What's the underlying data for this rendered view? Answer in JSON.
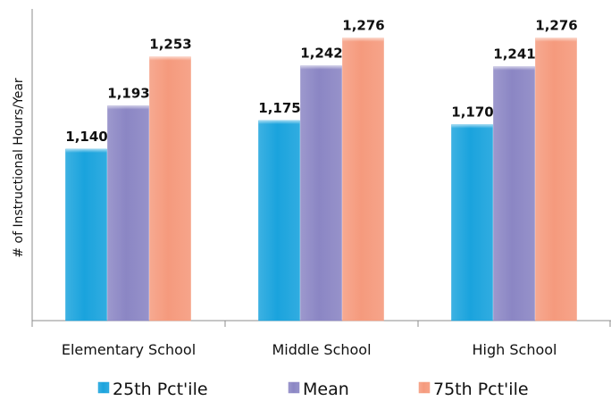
{
  "chart_data": {
    "type": "bar",
    "categories": [
      "Elementary School",
      "Middle School",
      "High School"
    ],
    "series": [
      {
        "name": "25th Pct'ile",
        "values": [
          1140,
          1175,
          1170
        ],
        "labels": [
          "1,140",
          "1,175",
          "1,170"
        ],
        "color": "#1aa3dd"
      },
      {
        "name": "Mean",
        "values": [
          1193,
          1242,
          1241
        ],
        "labels": [
          "1,193",
          "1,242",
          "1,241"
        ],
        "color": "#8b86c4"
      },
      {
        "name": "75th Pct'ile",
        "values": [
          1253,
          1276,
          1276
        ],
        "labels": [
          "1,253",
          "1,276",
          "1,276"
        ],
        "color": "#f59a7d"
      }
    ],
    "title": "",
    "xlabel": "",
    "ylabel": "# of Instructional Hours/Year",
    "ylim": [
      930,
      1280
    ],
    "grid": false,
    "legend": "bottom",
    "y_tick_labels_shown": false
  }
}
